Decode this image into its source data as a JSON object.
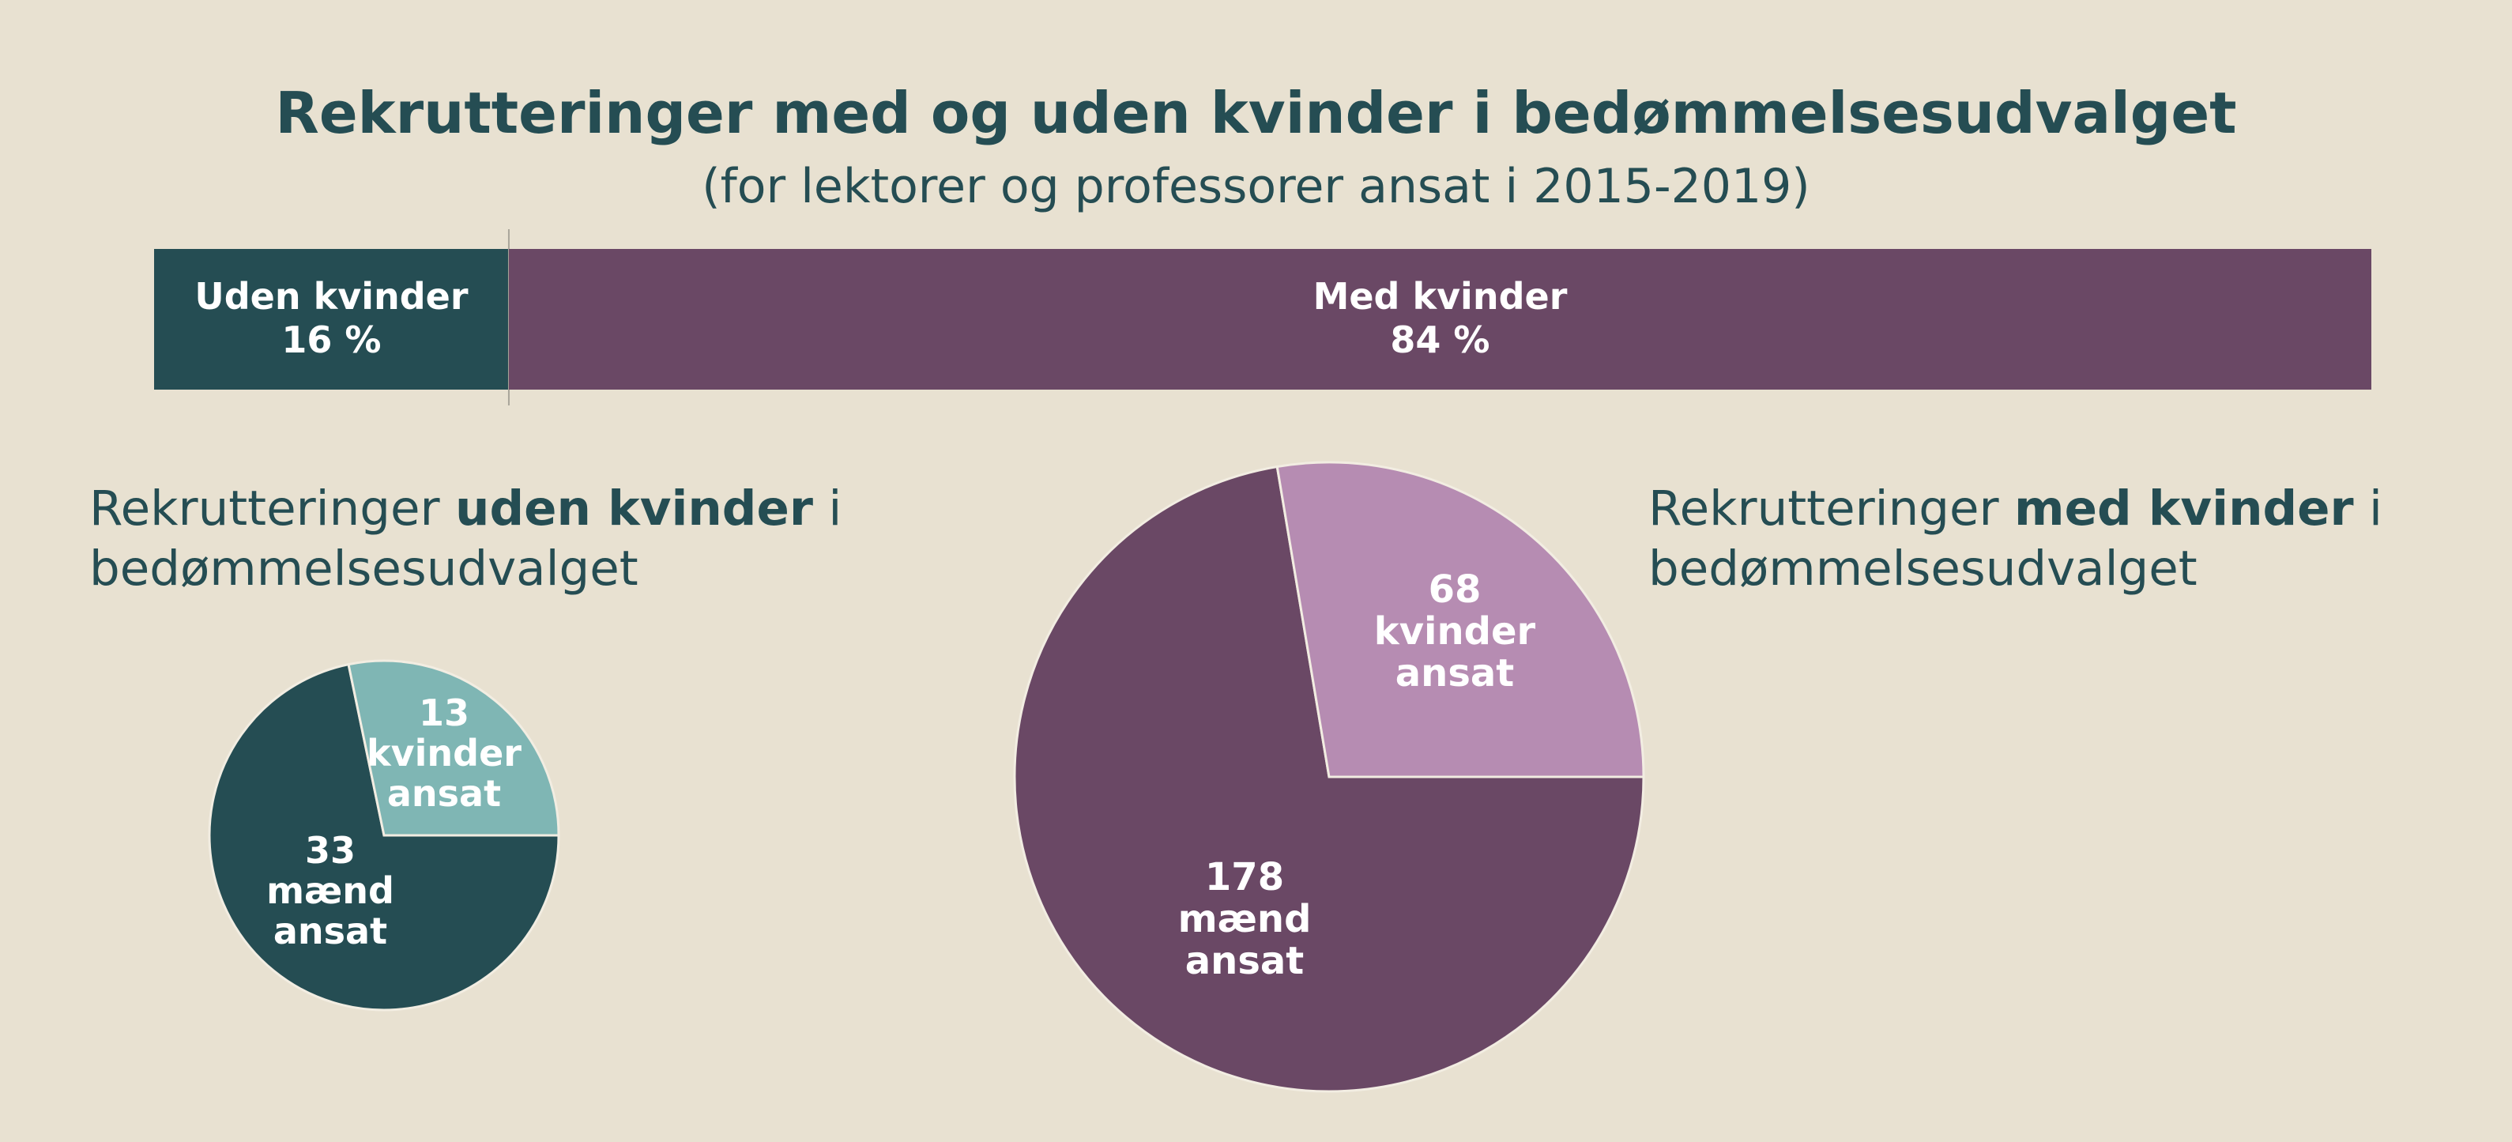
{
  "chart_data": [
    {
      "type": "bar",
      "title": "Rekrutteringer med og uden kvinder i bedømmelsesudvalget",
      "subtitle": "(for lektorer og professorer ansat i 2015-2019)",
      "stacked": true,
      "orientation": "horizontal",
      "series": [
        {
          "name": "Uden kvinder",
          "value": 16,
          "label": "16 %",
          "color": "#254D53"
        },
        {
          "name": "Med kvinder",
          "value": 84,
          "label": "84 %",
          "color": "#6A4865"
        }
      ]
    },
    {
      "type": "pie",
      "heading_before": "Rekrutteringer ",
      "heading_bold": "uden kvinder",
      "heading_after": " i bedømmelsesudvalget",
      "slices": [
        {
          "value": 13,
          "label_lines": [
            "13",
            "kvinder",
            "ansat"
          ],
          "color": "#7FB6B4"
        },
        {
          "value": 33,
          "label_lines": [
            "33",
            "mænd",
            "ansat"
          ],
          "color": "#254D53"
        }
      ]
    },
    {
      "type": "pie",
      "heading_before": "Rekrutteringer ",
      "heading_bold": "med kvinder",
      "heading_after": " i bedømmelsesudvalget",
      "slices": [
        {
          "value": 68,
          "label_lines": [
            "68",
            "kvinder",
            "ansat"
          ],
          "color": "#B68CB2"
        },
        {
          "value": 178,
          "label_lines": [
            "178",
            "mænd",
            "ansat"
          ],
          "color": "#6A4865"
        }
      ]
    }
  ]
}
